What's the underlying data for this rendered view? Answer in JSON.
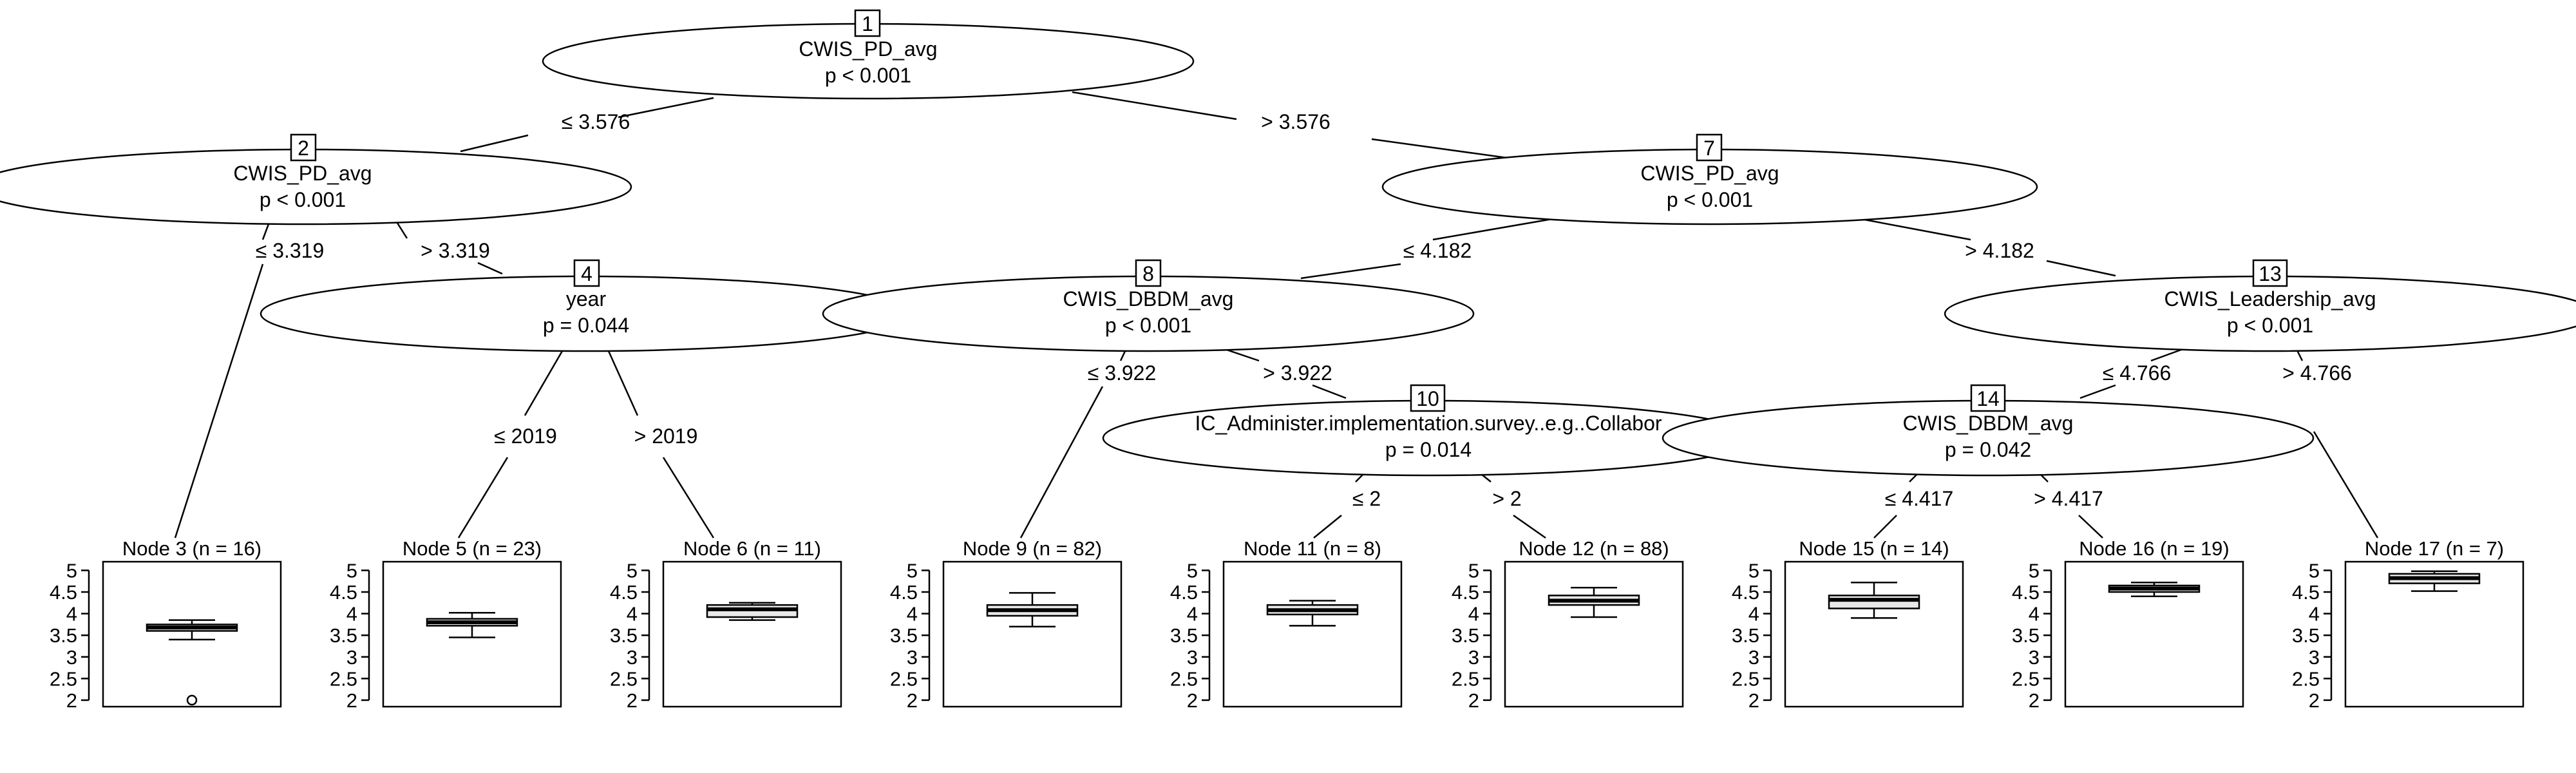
{
  "inner_nodes": {
    "1": {
      "id": "1",
      "variable": "CWIS_PD_avg",
      "p": "p < 0.001"
    },
    "2": {
      "id": "2",
      "variable": "CWIS_PD_avg",
      "p": "p < 0.001"
    },
    "4": {
      "id": "4",
      "variable": "year",
      "p": "p = 0.044"
    },
    "7": {
      "id": "7",
      "variable": "CWIS_PD_avg",
      "p": "p < 0.001"
    },
    "8": {
      "id": "8",
      "variable": "CWIS_DBDM_avg",
      "p": "p < 0.001"
    },
    "10": {
      "id": "10",
      "variable": "IC_Administer.implementation.survey..e.g..Collabor",
      "p": "p = 0.014"
    },
    "13": {
      "id": "13",
      "variable": "CWIS_Leadership_avg",
      "p": "p < 0.001"
    },
    "14": {
      "id": "14",
      "variable": "CWIS_DBDM_avg",
      "p": "p = 0.042"
    }
  },
  "edges": {
    "e1_2": "≤ 3.576",
    "e1_7": "> 3.576",
    "e2_3": "≤ 3.319",
    "e2_4": "> 3.319",
    "e4_5": "≤ 2019",
    "e4_6": "> 2019",
    "e7_8": "≤ 4.182",
    "e7_13": "> 4.182",
    "e8_9": "≤ 3.922",
    "e8_10": "> 3.922",
    "e10_11": "≤ 2",
    "e10_12": "> 2",
    "e13_14": "≤ 4.766",
    "e13_17": "> 4.766",
    "e14_15": "≤ 4.417",
    "e14_16": "> 4.417"
  },
  "leaf_axis": {
    "ylim": [
      1.85,
      5.2
    ],
    "ticks": [
      "2",
      "2.5",
      "3",
      "3.5",
      "4",
      "4.5",
      "5"
    ]
  },
  "chart_data": {
    "type": "boxplot",
    "title": "",
    "ylabel": "",
    "ylim": [
      1.85,
      5.2
    ],
    "series": [
      {
        "node": "3",
        "title": "Node 3 (n = 16)",
        "n": 16,
        "min": 3.4,
        "q1": 3.6,
        "median": 3.68,
        "q3": 3.75,
        "max": 3.85,
        "outliers": [
          2.0
        ]
      },
      {
        "node": "5",
        "title": "Node 5 (n = 23)",
        "n": 23,
        "min": 3.45,
        "q1": 3.72,
        "median": 3.8,
        "q3": 3.88,
        "max": 4.02,
        "outliers": []
      },
      {
        "node": "6",
        "title": "Node 6 (n = 11)",
        "n": 11,
        "min": 3.85,
        "q1": 3.92,
        "median": 4.1,
        "q3": 4.2,
        "max": 4.25,
        "outliers": []
      },
      {
        "node": "9",
        "title": "Node 9 (n = 82)",
        "n": 82,
        "min": 3.7,
        "q1": 3.95,
        "median": 4.08,
        "q3": 4.2,
        "max": 4.48,
        "outliers": []
      },
      {
        "node": "11",
        "title": "Node 11 (n = 8)",
        "n": 8,
        "min": 3.72,
        "q1": 3.98,
        "median": 4.08,
        "q3": 4.2,
        "max": 4.3,
        "outliers": []
      },
      {
        "node": "12",
        "title": "Node 12 (n = 88)",
        "n": 88,
        "min": 3.92,
        "q1": 4.2,
        "median": 4.3,
        "q3": 4.42,
        "max": 4.6,
        "outliers": []
      },
      {
        "node": "15",
        "title": "Node 15 (n = 14)",
        "n": 14,
        "min": 3.9,
        "q1": 4.12,
        "median": 4.32,
        "q3": 4.42,
        "max": 4.72,
        "outliers": []
      },
      {
        "node": "16",
        "title": "Node 16 (n = 19)",
        "n": 19,
        "min": 4.4,
        "q1": 4.5,
        "median": 4.58,
        "q3": 4.65,
        "max": 4.72,
        "outliers": []
      },
      {
        "node": "17",
        "title": "Node 17 (n = 7)",
        "n": 7,
        "min": 4.52,
        "q1": 4.7,
        "median": 4.82,
        "q3": 4.92,
        "max": 4.98,
        "outliers": []
      }
    ]
  }
}
